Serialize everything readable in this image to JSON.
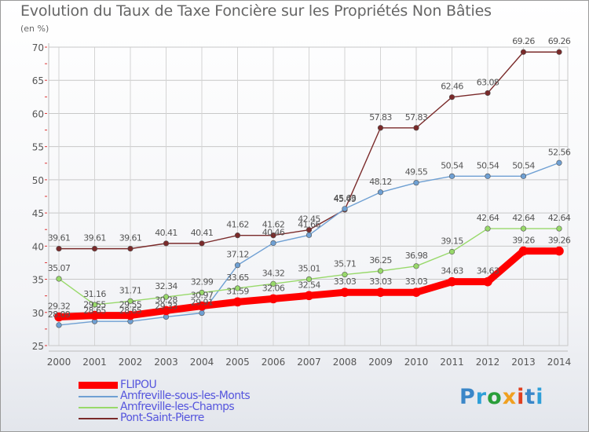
{
  "chart_data": {
    "type": "line",
    "title": "Evolution du Taux de Taxe Foncière sur les Propriétés Non Bâties",
    "ylabel": "(en %)",
    "xlabel": "",
    "ylim": [
      25,
      70
    ],
    "yticks": [
      "25",
      "30",
      "35",
      "40",
      "45",
      "50",
      "55",
      "60",
      "65",
      "70"
    ],
    "categories": [
      "2000",
      "2001",
      "2002",
      "2003",
      "2004",
      "2005",
      "2006",
      "2007",
      "2008",
      "2009",
      "2010",
      "2011",
      "2012",
      "2013",
      "2014"
    ],
    "grid": true,
    "legend_position": "bottom-left",
    "series": [
      {
        "name": "FLIPOU",
        "color": "#ff0000",
        "values": [
          29.32,
          29.55,
          29.55,
          30.28,
          30.97,
          31.59,
          32.06,
          32.54,
          33.03,
          33.03,
          33.03,
          34.63,
          34.63,
          39.26,
          39.26
        ],
        "labels": [
          "29.32",
          "29.55",
          "29.55",
          "30.28",
          "30.97",
          "31.59",
          "32.06",
          "32.54",
          "33.03",
          "33.03",
          "33.03",
          "34.63",
          "34.63",
          "39.26",
          "39.26"
        ]
      },
      {
        "name": "Amfreville-sous-les-Monts",
        "color": "#6fa0d3",
        "values": [
          28.09,
          28.65,
          28.65,
          29.33,
          29.91,
          37.12,
          40.46,
          41.66,
          45.63,
          48.12,
          49.55,
          50.54,
          50.54,
          50.54,
          52.56
        ],
        "labels": [
          "28.09",
          "28.65",
          "28.65",
          "29.33",
          "29.91",
          "37.12",
          "40.46",
          "41.66",
          "45.63",
          "48.12",
          "49.55",
          "50.54",
          "50.54",
          "50.54",
          "52.56"
        ]
      },
      {
        "name": "Amfreville-les-Champs",
        "color": "#98d96a",
        "values": [
          35.07,
          31.16,
          31.71,
          32.34,
          32.99,
          33.65,
          34.32,
          35.01,
          35.71,
          36.25,
          36.98,
          39.15,
          42.64,
          42.64,
          42.64
        ],
        "labels": [
          "35.07",
          "31.16",
          "31.71",
          "32.34",
          "32.99",
          "33.65",
          "34.32",
          "35.01",
          "35.71",
          "36.25",
          "36.98",
          "39.15",
          "42.64",
          "42.64",
          "42.64"
        ]
      },
      {
        "name": "Pont-Saint-Pierre",
        "color": "#7a2a2a",
        "values": [
          39.61,
          39.61,
          39.61,
          40.41,
          40.41,
          41.62,
          41.62,
          42.45,
          45.49,
          57.83,
          57.83,
          62.46,
          63.08,
          69.26,
          69.26
        ],
        "labels": [
          "39.61",
          "39.61",
          "39.61",
          "40.41",
          "40.41",
          "41.62",
          "41.62",
          "42.45",
          "45.49",
          "57.83",
          "57.83",
          "62.46",
          "63.08",
          "69.26",
          "69.26"
        ]
      }
    ]
  },
  "brand": {
    "name": "Proxiti",
    "letter_colors": [
      "#3a86c8",
      "#2f9fd8",
      "#2a9e3a",
      "#f0a020",
      "#e04020",
      "#3a86c8",
      "#2f9fd8"
    ]
  }
}
